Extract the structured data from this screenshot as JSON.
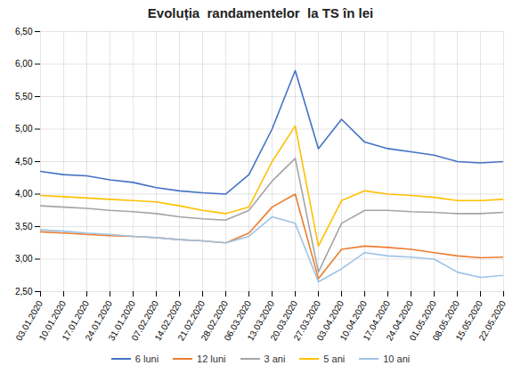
{
  "chart_data": {
    "type": "line",
    "title": "Evoluția  randamentelor  la TS în lei",
    "categories": [
      "03.01.2020",
      "10.01.2020",
      "17.01.2020",
      "24.01.2020",
      "31.01.2020",
      "07.02.2020",
      "14.02.2020",
      "21.02.2020",
      "28.02.2020",
      "06.03.2020",
      "13.03.2020",
      "20.03.2020",
      "27.03.2020",
      "03.04.2020",
      "10.04.2020",
      "17.04.2020",
      "24.04.2020",
      "01.05.2020",
      "08.05.2020",
      "15.05.2020",
      "22.05.2020"
    ],
    "series": [
      {
        "name": "6 luni",
        "color": "#4472c4",
        "values": [
          4.35,
          4.3,
          4.28,
          4.22,
          4.18,
          4.1,
          4.05,
          4.02,
          4.0,
          4.3,
          5.0,
          5.9,
          4.7,
          5.15,
          4.8,
          4.7,
          4.65,
          4.6,
          4.5,
          4.48,
          4.5
        ]
      },
      {
        "name": "12 luni",
        "color": "#ed7d31",
        "values": [
          3.42,
          3.4,
          3.38,
          3.36,
          3.35,
          3.33,
          3.3,
          3.28,
          3.25,
          3.4,
          3.8,
          4.0,
          2.7,
          3.15,
          3.2,
          3.18,
          3.15,
          3.1,
          3.05,
          3.02,
          3.03
        ]
      },
      {
        "name": "3 ani",
        "color": "#a5a5a5",
        "values": [
          3.82,
          3.8,
          3.78,
          3.75,
          3.73,
          3.7,
          3.65,
          3.62,
          3.6,
          3.75,
          4.2,
          4.55,
          2.8,
          3.55,
          3.75,
          3.75,
          3.73,
          3.72,
          3.7,
          3.7,
          3.72
        ]
      },
      {
        "name": "5 ani",
        "color": "#ffc000",
        "values": [
          3.98,
          3.96,
          3.94,
          3.92,
          3.9,
          3.88,
          3.82,
          3.75,
          3.7,
          3.8,
          4.5,
          5.05,
          3.2,
          3.9,
          4.05,
          4.0,
          3.98,
          3.95,
          3.9,
          3.9,
          3.92
        ]
      },
      {
        "name": "10 ani",
        "color": "#9dc3e6",
        "values": [
          3.45,
          3.43,
          3.4,
          3.38,
          3.35,
          3.33,
          3.3,
          3.28,
          3.25,
          3.35,
          3.65,
          3.55,
          2.65,
          2.85,
          3.1,
          3.05,
          3.03,
          3.0,
          2.8,
          2.72,
          2.75
        ]
      }
    ],
    "ylim": [
      2.5,
      6.5
    ],
    "yticks": [
      {
        "value": 2.5,
        "label": "2,50"
      },
      {
        "value": 3.0,
        "label": "3,00"
      },
      {
        "value": 3.5,
        "label": "3,50"
      },
      {
        "value": 4.0,
        "label": "4,00"
      },
      {
        "value": 4.5,
        "label": "4,50"
      },
      {
        "value": 5.0,
        "label": "5,00"
      },
      {
        "value": 5.5,
        "label": "5,50"
      },
      {
        "value": 6.0,
        "label": "6,00"
      },
      {
        "value": 6.5,
        "label": "6,50"
      }
    ],
    "grid": true,
    "legend": "bottom"
  }
}
